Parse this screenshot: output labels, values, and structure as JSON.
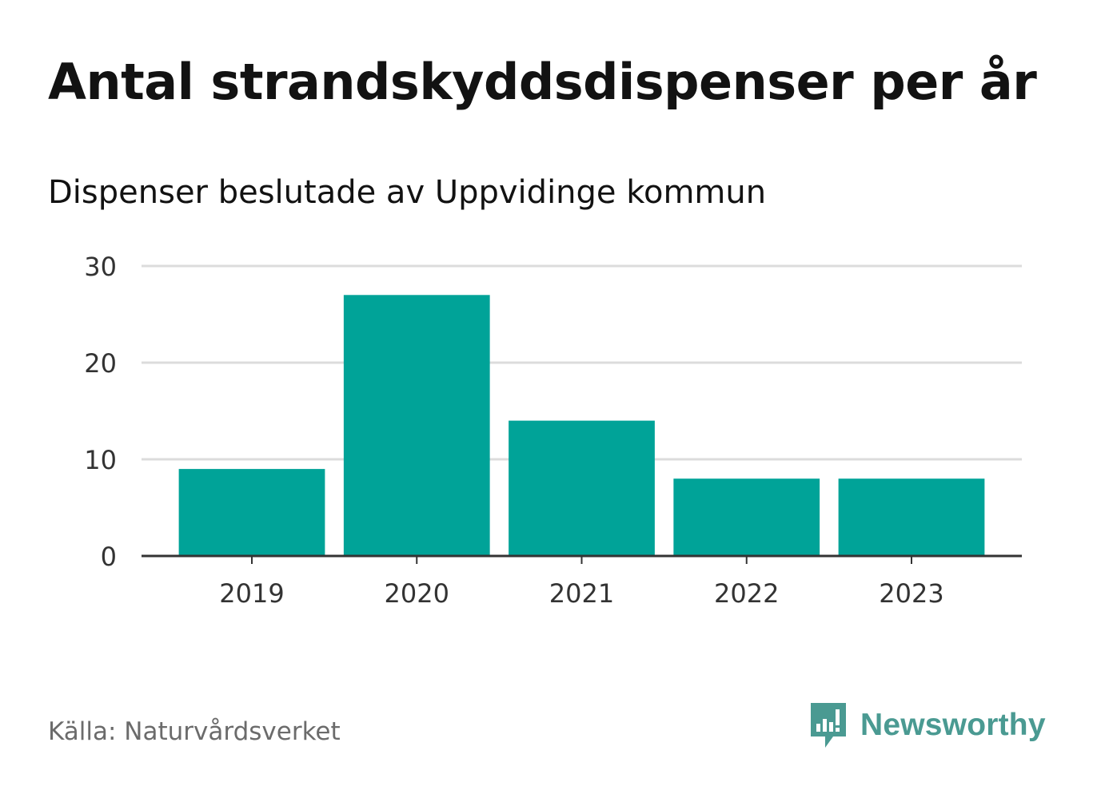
{
  "title": "Antal strandskyddsdispenser per år",
  "subtitle": "Dispenser beslutade av Uppvidinge kommun",
  "source": "Källa: Naturvårdsverket",
  "brand": {
    "name": "Newsworthy",
    "icon": "newsworthy-logo-icon",
    "color": "#4a9a92"
  },
  "chart_data": {
    "type": "bar",
    "title": "Antal strandskyddsdispenser per år",
    "subtitle": "Dispenser beslutade av Uppvidinge kommun",
    "categories": [
      "2019",
      "2020",
      "2021",
      "2022",
      "2023"
    ],
    "values": [
      9,
      27,
      14,
      8,
      8
    ],
    "xlabel": "",
    "ylabel": "",
    "ylim": [
      0,
      30
    ],
    "yticks": [
      0,
      10,
      20,
      30
    ],
    "ytick_labels": [
      "0",
      "10",
      "20",
      "30"
    ],
    "grid": true,
    "bar_color": "#00a398"
  }
}
